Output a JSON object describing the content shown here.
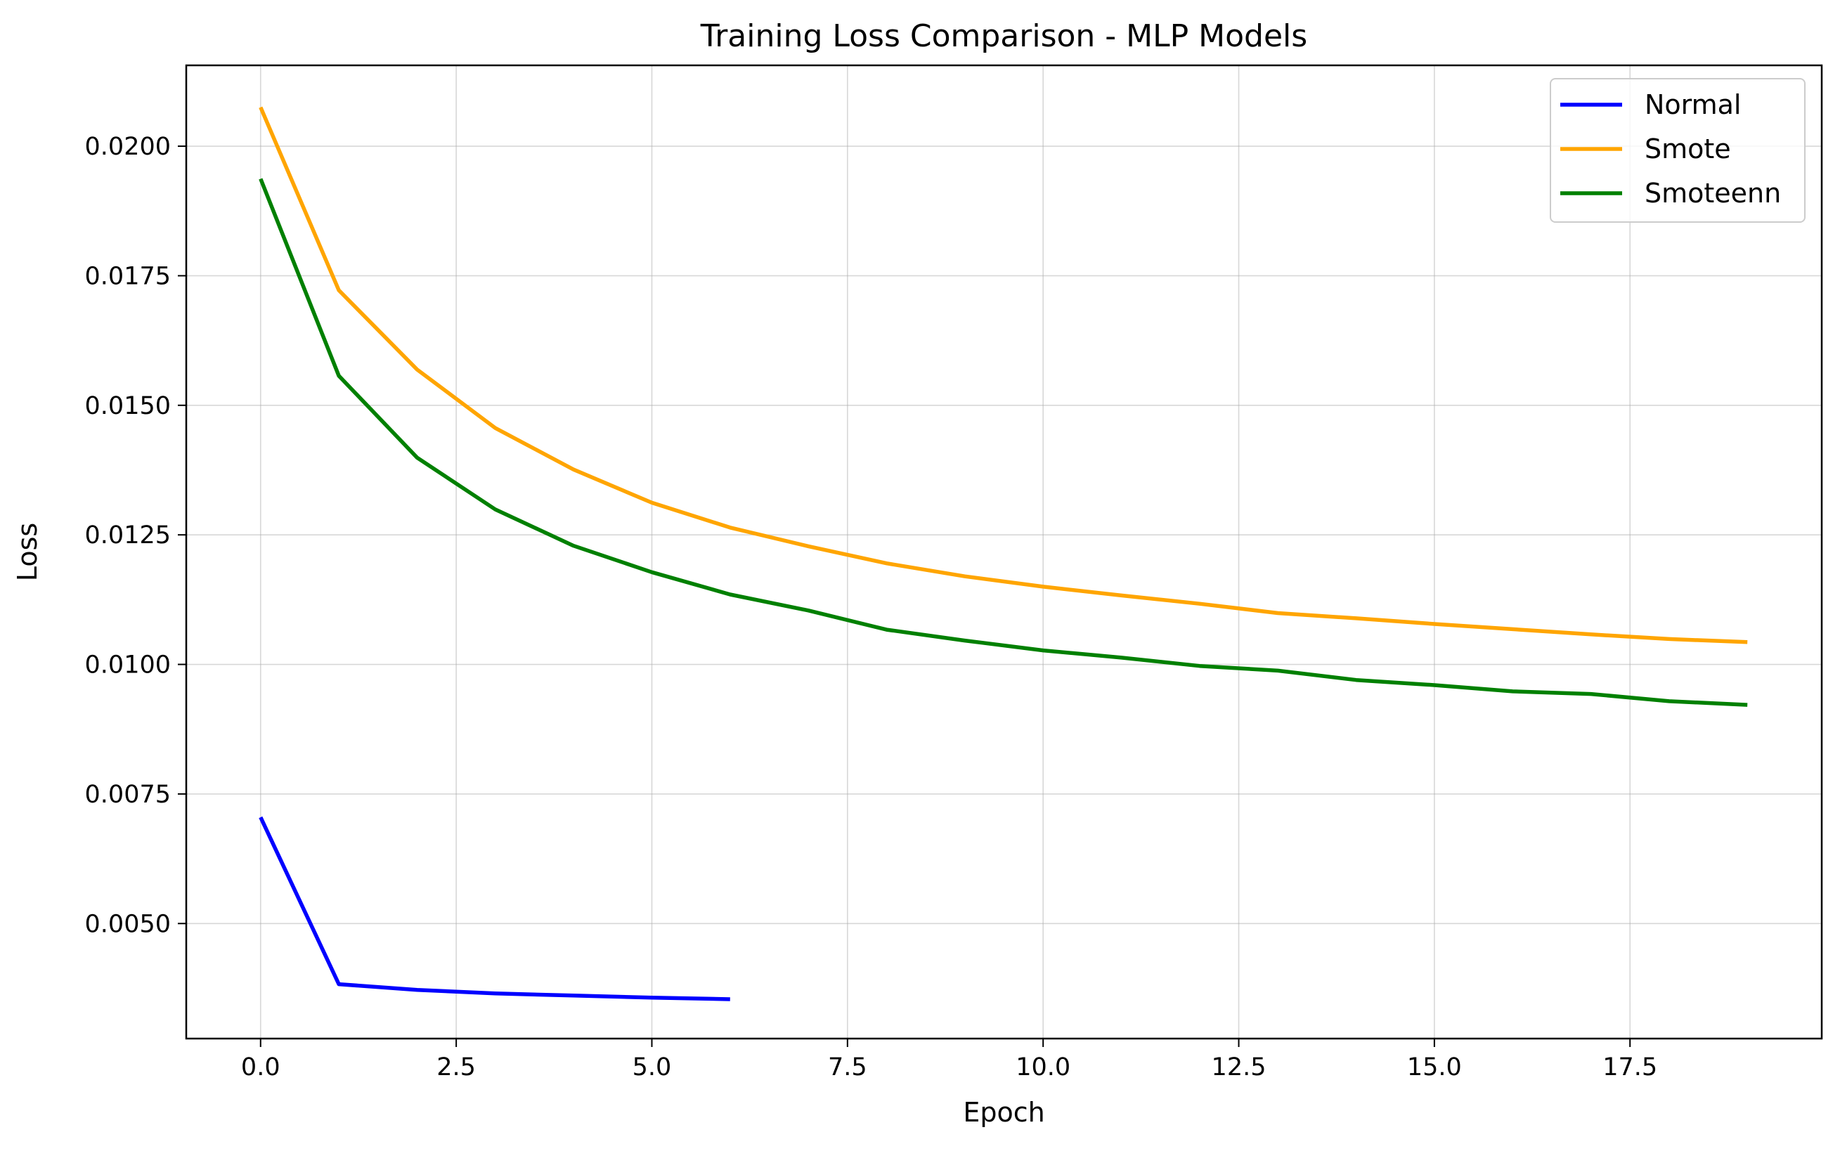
{
  "chart_data": {
    "type": "line",
    "title": "Training Loss Comparison - MLP Models",
    "xlabel": "Epoch",
    "ylabel": "Loss",
    "xlim": [
      -0.95,
      19.95
    ],
    "ylim": [
      0.00278,
      0.02156
    ],
    "xticks": [
      0.0,
      2.5,
      5.0,
      7.5,
      10.0,
      12.5,
      15.0,
      17.5
    ],
    "xtick_labels": [
      "0.0",
      "2.5",
      "5.0",
      "7.5",
      "10.0",
      "12.5",
      "15.0",
      "17.5"
    ],
    "yticks": [
      0.005,
      0.0075,
      0.01,
      0.0125,
      0.015,
      0.0175,
      0.02
    ],
    "ytick_labels": [
      "0.0050",
      "0.0075",
      "0.0100",
      "0.0125",
      "0.0150",
      "0.0175",
      "0.0200"
    ],
    "grid": true,
    "legend_position": "top-right",
    "series": [
      {
        "name": "Normal",
        "color": "#0000ff",
        "x": [
          0,
          1,
          2,
          3,
          4,
          5,
          6
        ],
        "y": [
          0.00705,
          0.00383,
          0.00372,
          0.00365,
          0.00361,
          0.00357,
          0.00354
        ]
      },
      {
        "name": "Smote",
        "color": "#ffa500",
        "x": [
          0,
          1,
          2,
          3,
          4,
          5,
          6,
          7,
          8,
          9,
          10,
          11,
          12,
          13,
          14,
          15,
          16,
          17,
          18,
          19
        ],
        "y": [
          0.02075,
          0.01722,
          0.01569,
          0.01456,
          0.01376,
          0.01312,
          0.01264,
          0.01228,
          0.01195,
          0.0117,
          0.0115,
          0.01133,
          0.01117,
          0.01099,
          0.01089,
          0.01078,
          0.01068,
          0.01058,
          0.01049,
          0.01043
        ]
      },
      {
        "name": "Smoteenn",
        "color": "#008000",
        "x": [
          0,
          1,
          2,
          3,
          4,
          5,
          6,
          7,
          8,
          9,
          10,
          11,
          12,
          13,
          14,
          15,
          16,
          17,
          18,
          19
        ],
        "y": [
          0.01937,
          0.01557,
          0.01399,
          0.01299,
          0.01229,
          0.01178,
          0.01135,
          0.01104,
          0.01067,
          0.01046,
          0.01027,
          0.01013,
          0.00997,
          0.00988,
          0.0097,
          0.0096,
          0.00948,
          0.00943,
          0.00929,
          0.00922
        ]
      }
    ]
  }
}
